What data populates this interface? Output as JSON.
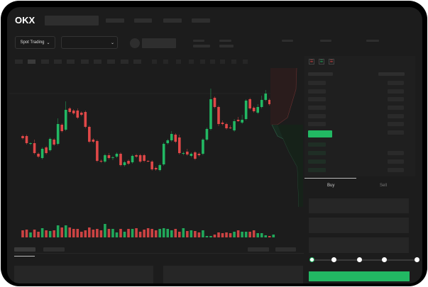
{
  "header": {
    "logo": "OKX",
    "market_selector": "Spot Trading"
  },
  "trade_tabs": {
    "buy": "Buy",
    "sell": "Sell"
  },
  "colors": {
    "up": "#22b863",
    "down": "#e04848",
    "background": "#1c1c1c",
    "accent": "#22b863"
  },
  "icons": [
    "chevron-down-icon",
    "order-book-both-icon",
    "order-book-bids-icon",
    "order-book-asks-icon"
  ],
  "slider": {
    "value_percent": 0,
    "stops": [
      0,
      25,
      50,
      75,
      100
    ]
  },
  "chart_data": {
    "type": "candlestick",
    "columns": [
      "open",
      "close",
      "high",
      "low"
    ],
    "candles": [
      [
        58,
        55,
        60,
        53
      ],
      [
        58,
        48,
        60,
        46
      ],
      [
        47,
        48,
        49,
        45
      ],
      [
        48,
        34,
        53,
        32
      ],
      [
        33,
        29,
        35,
        27
      ],
      [
        27,
        40,
        42,
        25
      ],
      [
        42,
        34,
        44,
        32
      ],
      [
        38,
        54,
        56,
        36
      ],
      [
        53,
        46,
        55,
        44
      ],
      [
        47,
        75,
        83,
        45
      ],
      [
        74,
        65,
        76,
        63
      ],
      [
        67,
        95,
        107,
        65
      ],
      [
        97,
        92,
        99,
        90
      ],
      [
        94,
        90,
        96,
        88
      ],
      [
        94,
        84,
        97,
        82
      ],
      [
        91,
        88,
        93,
        86
      ],
      [
        92,
        71,
        94,
        69
      ],
      [
        71,
        50,
        73,
        48
      ],
      [
        53,
        50,
        55,
        48
      ],
      [
        51,
        23,
        53,
        21
      ],
      [
        23,
        22,
        25,
        20
      ],
      [
        22,
        31,
        33,
        20
      ],
      [
        31,
        27,
        34,
        25
      ],
      [
        27,
        28,
        30,
        24
      ],
      [
        29,
        33,
        35,
        27
      ],
      [
        33,
        17,
        35,
        15
      ],
      [
        17,
        21,
        23,
        15
      ],
      [
        23,
        19,
        25,
        17
      ],
      [
        21,
        30,
        32,
        19
      ],
      [
        31,
        29,
        33,
        27
      ],
      [
        31,
        22,
        33,
        20
      ],
      [
        31,
        23,
        33,
        21
      ],
      [
        23,
        22,
        24,
        21
      ],
      [
        22,
        11,
        24,
        9
      ],
      [
        13,
        11,
        15,
        9
      ],
      [
        10,
        17,
        19,
        8
      ],
      [
        18,
        47,
        49,
        16
      ],
      [
        48,
        52,
        54,
        46
      ],
      [
        52,
        61,
        65,
        50
      ],
      [
        60,
        50,
        62,
        48
      ],
      [
        56,
        34,
        60,
        32
      ],
      [
        33,
        34,
        36,
        31
      ],
      [
        36,
        32,
        40,
        30
      ],
      [
        30,
        33,
        35,
        28
      ],
      [
        35,
        26,
        37,
        24
      ],
      [
        33,
        31,
        35,
        29
      ],
      [
        33,
        53,
        55,
        31
      ],
      [
        53,
        68,
        70,
        51
      ],
      [
        68,
        110,
        125,
        66
      ],
      [
        112,
        99,
        114,
        97
      ],
      [
        99,
        75,
        101,
        72
      ],
      [
        77,
        75,
        80,
        73
      ],
      [
        75,
        69,
        77,
        67
      ],
      [
        70,
        69,
        73,
        68
      ],
      [
        66,
        79,
        82,
        64
      ],
      [
        81,
        79,
        85,
        78
      ],
      [
        77,
        81,
        88,
        75
      ],
      [
        82,
        108,
        110,
        80
      ],
      [
        110,
        97,
        112,
        95
      ],
      [
        98,
        93,
        100,
        91
      ],
      [
        91,
        99,
        103,
        89
      ],
      [
        99,
        109,
        115,
        97
      ],
      [
        109,
        118,
        123,
        107
      ],
      [
        109,
        103,
        111,
        101
      ],
      [
        101,
        107,
        112,
        99
      ]
    ],
    "volume": [
      10,
      11,
      7,
      11,
      8,
      13,
      10,
      9,
      10,
      17,
      14,
      17,
      14,
      12,
      12,
      8,
      10,
      14,
      11,
      12,
      10,
      19,
      12,
      12,
      7,
      12,
      8,
      12,
      12,
      13,
      8,
      11,
      13,
      12,
      10,
      12,
      13,
      12,
      10,
      12,
      8,
      13,
      9,
      10,
      9,
      7,
      10,
      2,
      2,
      4,
      7,
      6,
      7,
      6,
      8,
      10,
      8,
      8,
      8,
      10,
      6,
      6,
      3,
      2,
      4
    ]
  }
}
